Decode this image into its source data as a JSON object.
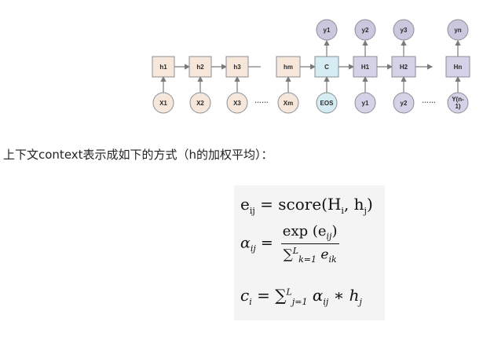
{
  "diagram": {
    "encoder_states": [
      "h1",
      "h2",
      "h3",
      "hm"
    ],
    "encoder_inputs": [
      "X1",
      "X2",
      "X3",
      "Xm"
    ],
    "context_label": "C",
    "eos_label": "EOS",
    "decoder_states": [
      "H1",
      "H2",
      "Hn"
    ],
    "decoder_inputs": [
      "y1",
      "y2",
      "Y(n-\n1)"
    ],
    "outputs": [
      "y1",
      "y2",
      "y3",
      "yn"
    ],
    "ellipsis": "……",
    "colors": {
      "encoder_fill": "#f6e7da",
      "context_fill": "#d4ecf2",
      "decoder_fill": "#d5d1e6",
      "input_fill": "#f6e7da",
      "output_fill": "#cbc7de"
    }
  },
  "caption": "上下文context表示成如下的方式（h的加权平均）：",
  "formulas": {
    "e_lhs": "e",
    "e_sub": "ij",
    "e_rhs_pre": "= score(H",
    "e_rhs_i": "i",
    "e_rhs_h": ", h",
    "e_rhs_j": "j",
    "e_rhs_close": ")",
    "alpha_lhs": "α",
    "alpha_sub": "ij",
    "alpha_eq": "=",
    "alpha_num": "exp (e",
    "alpha_num_sub": "ij",
    "alpha_num_close": ")",
    "alpha_den": "∑",
    "alpha_den_sup": "L",
    "alpha_den_sub": "k=1",
    "alpha_den_e": "e",
    "alpha_den_e_sub": "ik",
    "c_lhs": "c",
    "c_sub": "i",
    "c_eq": "= ∑",
    "c_sup": "L",
    "c_sum_sub": "j=1",
    "c_alpha": "α",
    "c_alpha_sub": "ij",
    "c_mul": "∗ h",
    "c_h_sub": "j"
  }
}
